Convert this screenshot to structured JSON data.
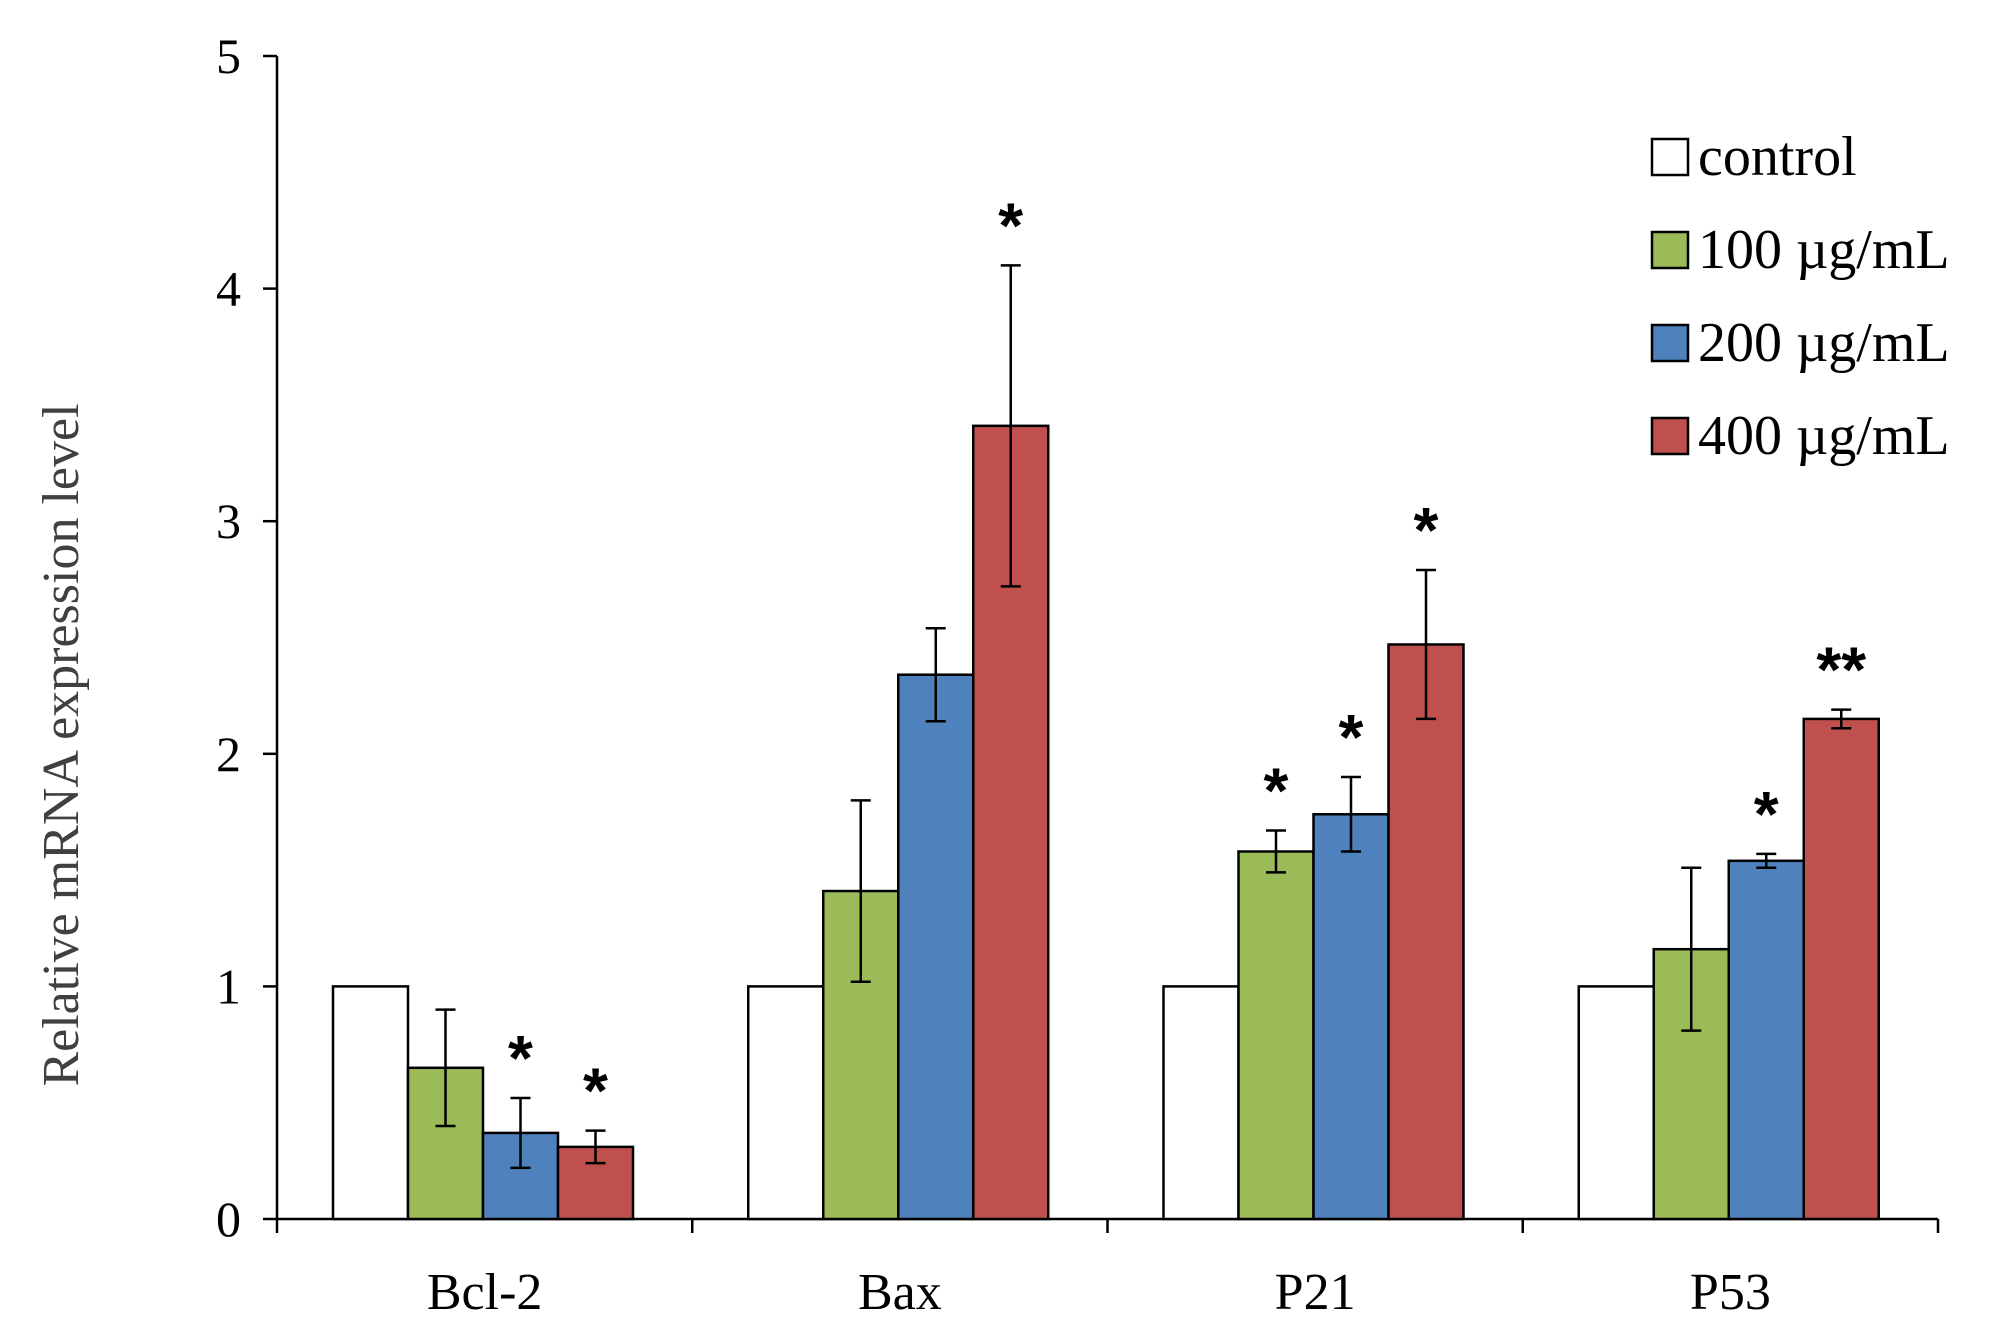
{
  "chart_data": {
    "type": "bar",
    "title": "",
    "xlabel": "",
    "ylabel": "Relative mRNA expression level",
    "ylim": [
      0,
      5
    ],
    "yticks": [
      0,
      1,
      2,
      3,
      4,
      5
    ],
    "grid": false,
    "legend_position": "top-right",
    "categories": [
      "Bcl-2",
      "Bax",
      "P21",
      "P53"
    ],
    "series": [
      {
        "name": "control",
        "color": "#ffffff",
        "values": [
          1.0,
          1.0,
          1.0,
          1.0
        ],
        "errors": [
          null,
          null,
          null,
          null
        ],
        "significance": [
          "",
          "",
          "",
          ""
        ]
      },
      {
        "name": "100 µg/mL",
        "color": "#9bbb59",
        "values": [
          0.65,
          1.41,
          1.58,
          1.16
        ],
        "errors": [
          0.25,
          0.39,
          0.09,
          0.35
        ],
        "significance": [
          "",
          "",
          "*",
          ""
        ]
      },
      {
        "name": "200 µg/mL",
        "color": "#4f81bd",
        "values": [
          0.37,
          2.34,
          1.74,
          1.54
        ],
        "errors": [
          0.15,
          0.2,
          0.16,
          0.03
        ],
        "significance": [
          "*",
          "",
          "*",
          "*"
        ]
      },
      {
        "name": "400 µg/mL",
        "color": "#c0504d",
        "values": [
          0.31,
          3.41,
          2.47,
          2.15
        ],
        "errors": [
          0.07,
          0.69,
          0.32,
          0.04
        ],
        "significance": [
          "*",
          "*",
          "*",
          "**"
        ]
      }
    ]
  }
}
